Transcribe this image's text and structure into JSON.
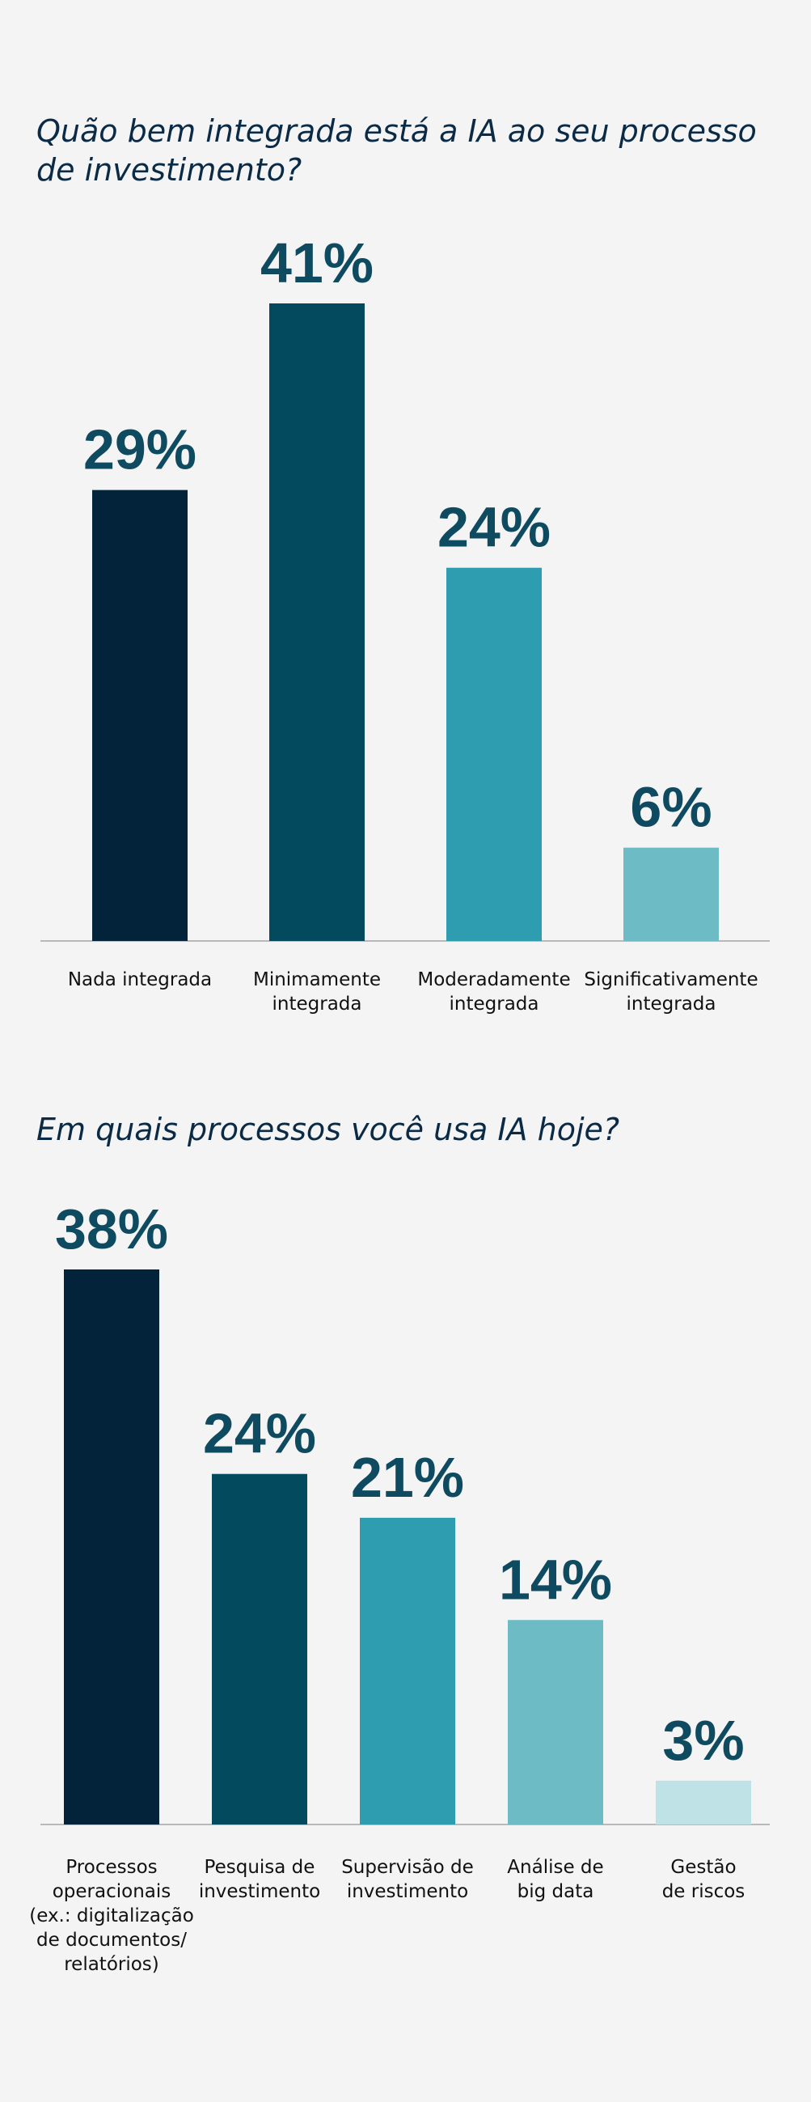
{
  "chart_data": [
    {
      "type": "bar",
      "title": "Quão bem integrada está a IA ao seu processo de investimento?",
      "categories": [
        "Nada integrada",
        "Minimamente integrada",
        "Moderadamente integrada",
        "Significativamente integrada"
      ],
      "category_lines": [
        [
          "Nada integrada"
        ],
        [
          "Minimamente",
          "integrada"
        ],
        [
          "Moderadamente",
          "integrada"
        ],
        [
          "Significativamente",
          "integrada"
        ]
      ],
      "values": [
        29,
        41,
        24,
        6
      ],
      "value_labels": [
        "29%",
        "41%",
        "24%",
        "6%"
      ],
      "colors": [
        "#03233b",
        "#034a5e",
        "#2e9db0",
        "#6dbbc5"
      ],
      "ylim": [
        0,
        41
      ],
      "grid": false,
      "legend": "none"
    },
    {
      "type": "bar",
      "title": "Em quais processos você usa IA hoje?",
      "categories": [
        "Processos operacionais (ex.: digitalização de documentos/ relatórios)",
        "Pesquisa de investimento",
        "Supervisão de investimento",
        "Análise de big data",
        "Gestão de riscos"
      ],
      "category_lines": [
        [
          "Processos",
          "operacionais",
          "(ex.: digitalização",
          "de documentos/",
          "relatórios)"
        ],
        [
          "Pesquisa de",
          "investimento"
        ],
        [
          "Supervisão de",
          "investimento"
        ],
        [
          "Análise de",
          "big data"
        ],
        [
          "Gestão",
          "de riscos"
        ]
      ],
      "values": [
        38,
        24,
        21,
        14,
        3
      ],
      "value_labels": [
        "38%",
        "24%",
        "21%",
        "14%",
        "3%"
      ],
      "colors": [
        "#03233b",
        "#034a5e",
        "#2e9db0",
        "#6dbbc5",
        "#bfe2e6"
      ],
      "ylim": [
        0,
        38
      ],
      "grid": false,
      "legend": "none"
    }
  ]
}
